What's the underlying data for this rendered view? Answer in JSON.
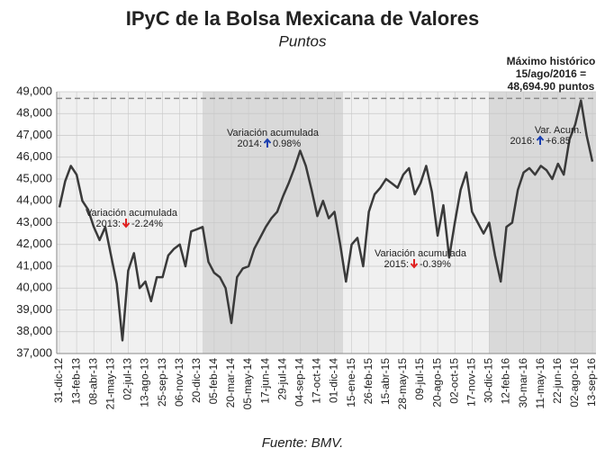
{
  "chart_data": {
    "type": "line",
    "title": "IPyC de la Bolsa Mexicana de Valores",
    "subtitle": "Puntos",
    "source": "Fuente: BMV.",
    "categories": [
      "31-dic-12",
      null,
      null,
      "13-feb-13",
      null,
      null,
      "08-abr-13",
      null,
      null,
      "21-may-13",
      null,
      null,
      "02-jul-13",
      null,
      null,
      "13-ago-13",
      null,
      null,
      "25-sep-13",
      null,
      null,
      "06-nov-13",
      null,
      null,
      "20-dic-13",
      null,
      null,
      "05-feb-14",
      null,
      null,
      "20-mar-14",
      null,
      null,
      "05-may-14",
      null,
      null,
      "17-jun-14",
      null,
      null,
      "29-jul-14",
      null,
      null,
      "04-sep-14",
      null,
      null,
      "17-oct-14",
      null,
      null,
      "01-dic-14",
      null,
      null,
      "15-ene-15",
      null,
      null,
      "26-feb-15",
      null,
      null,
      "15-abr-15",
      null,
      null,
      "28-may-15",
      null,
      null,
      "09-jul-15",
      null,
      null,
      "20-ago-15",
      null,
      null,
      "02-oct-15",
      null,
      null,
      "17-nov-15",
      null,
      null,
      "30-dic-15",
      null,
      null,
      "12-feb-16",
      null,
      null,
      "30-mar-16",
      null,
      null,
      "11-may-16",
      null,
      null,
      "22-jun-16",
      null,
      null,
      "02-ago-16",
      null,
      null,
      "13-sep-16"
    ],
    "series": [
      {
        "color": "#3a3a3a",
        "values": [
          43700,
          44900,
          45600,
          45200,
          44000,
          43600,
          42800,
          42200,
          42800,
          41500,
          40200,
          37600,
          40800,
          41600,
          40000,
          40300,
          39400,
          40500,
          40500,
          41500,
          41800,
          42000,
          41000,
          42600,
          42700,
          42800,
          41200,
          40700,
          40500,
          40000,
          38400,
          40500,
          40900,
          41000,
          41800,
          42300,
          42800,
          43200,
          43500,
          44200,
          44800,
          45500,
          46300,
          45600,
          44500,
          43300,
          44000,
          43200,
          43500,
          42000,
          40300,
          42000,
          42300,
          41000,
          43500,
          44300,
          44600,
          45000,
          44800,
          44600,
          45200,
          45500,
          44300,
          44800,
          45600,
          44400,
          42400,
          43800,
          41400,
          43000,
          44500,
          45300,
          43500,
          43000,
          42500,
          43000,
          41500,
          40300,
          42800,
          43000,
          44500,
          45300,
          45500,
          45200,
          45600,
          45400,
          45000,
          45700,
          45200,
          46800,
          47500,
          48600,
          47000,
          45800
        ]
      }
    ],
    "ylim": [
      37000,
      49000
    ],
    "yticks": [
      {
        "value": 37000,
        "label": "37,000"
      },
      {
        "value": 38000,
        "label": "38,000"
      },
      {
        "value": 39000,
        "label": "39,000"
      },
      {
        "value": 40000,
        "label": "40,000"
      },
      {
        "value": 41000,
        "label": "41,000"
      },
      {
        "value": 42000,
        "label": "42,000"
      },
      {
        "value": 43000,
        "label": "43,000"
      },
      {
        "value": 44000,
        "label": "44,000"
      },
      {
        "value": 45000,
        "label": "45,000"
      },
      {
        "value": 46000,
        "label": "46,000"
      },
      {
        "value": 47000,
        "label": "47,000"
      },
      {
        "value": 48000,
        "label": "48,000"
      },
      {
        "value": 49000,
        "label": "49,000"
      }
    ],
    "grid": true,
    "reference_line": 48694.9,
    "annotations": [
      {
        "title": "Variación acumulada",
        "year": "2013:",
        "value": "-2.24%"
      },
      {
        "title": "Variación acumulada",
        "year": "2014:",
        "value": "0.98%"
      },
      {
        "title": "Variación acumulada",
        "year": "2015:",
        "value": "-0.39%"
      },
      {
        "title": "Var. Acum.",
        "year": "2016:",
        "value": "+6.85"
      }
    ],
    "max_note": [
      "Máximo histórico",
      "15/ago/2016 =",
      "48,694.90 puntos"
    ]
  }
}
